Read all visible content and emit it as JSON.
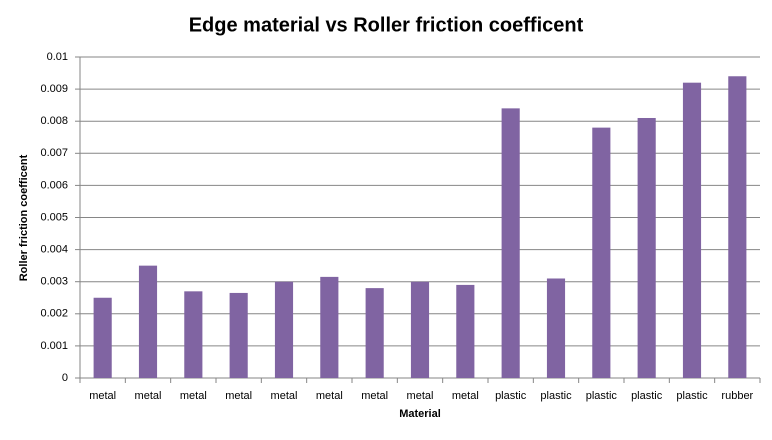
{
  "chart_data": {
    "type": "bar",
    "title": "Edge material vs Roller friction coefficent",
    "x_label": "Material",
    "y_label": "Roller friction coefficent",
    "categories": [
      "metal",
      "metal",
      "metal",
      "metal",
      "metal",
      "metal",
      "metal",
      "metal",
      "metal",
      "plastic",
      "plastic",
      "plastic",
      "plastic",
      "plastic",
      "rubber"
    ],
    "values": [
      0.0025,
      0.0035,
      0.0027,
      0.00265,
      0.003,
      0.00315,
      0.0028,
      0.003,
      0.0029,
      0.0084,
      0.0031,
      0.0078,
      0.0081,
      0.0092,
      0.0094
    ],
    "color": "#8064a2",
    "ylim": [
      0,
      0.01
    ],
    "yticks": [
      0,
      0.001,
      0.002,
      0.003,
      0.004,
      0.005,
      0.006,
      0.007,
      0.008,
      0.009,
      0.01
    ],
    "grid": true
  }
}
